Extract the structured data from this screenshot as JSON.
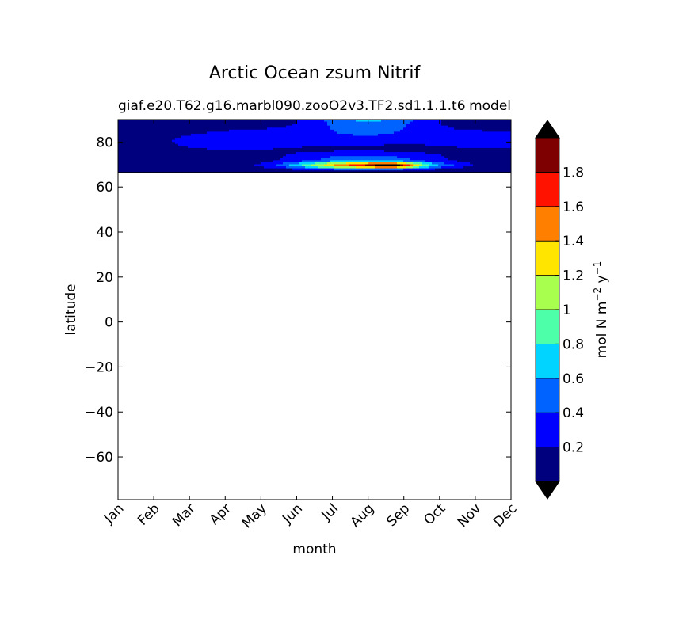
{
  "chart_data": {
    "type": "heatmap",
    "title": "Arctic Ocean zsum Nitrif",
    "subtitle_left": "giaf.e20.T62.g16.marbl090.zooO2v3.TF2.sd1.1.1.t6",
    "subtitle_right": "model",
    "xlabel": "month",
    "ylabel": "latitude",
    "x_ticks": [
      "Jan",
      "Feb",
      "Mar",
      "Apr",
      "May",
      "Jun",
      "Jul",
      "Aug",
      "Sep",
      "Oct",
      "Nov",
      "Dec"
    ],
    "y_ticks": [
      "−60",
      "−40",
      "−20",
      "0",
      "20",
      "40",
      "60",
      "80"
    ],
    "y_tick_values": [
      -60,
      -40,
      -20,
      0,
      20,
      40,
      60,
      80
    ],
    "ylim": [
      -79,
      90
    ],
    "data_lat_range": [
      66.5,
      90
    ],
    "colorbar": {
      "label_main": "mol N m",
      "label_exp1": "−2",
      "label_mid": " y",
      "label_exp2": "−1",
      "levels": [
        0,
        0.2,
        0.4,
        0.6,
        0.8,
        1.0,
        1.2,
        1.4,
        1.6,
        1.8,
        2.0
      ],
      "tick_labels": [
        "0.2",
        "0.4",
        "0.6",
        "0.8",
        "1",
        "1.2",
        "1.4",
        "1.6",
        "1.8"
      ],
      "tick_values": [
        0.2,
        0.4,
        0.6,
        0.8,
        1.0,
        1.2,
        1.4,
        1.6,
        1.8
      ],
      "colors": [
        "#00007f",
        "#0000ff",
        "#0063ff",
        "#00d4ff",
        "#4dffa9",
        "#a9ff4d",
        "#ffe500",
        "#ff7f00",
        "#ff1300",
        "#7f0000"
      ],
      "under_color": "#000000",
      "over_color": "#000000"
    }
  }
}
